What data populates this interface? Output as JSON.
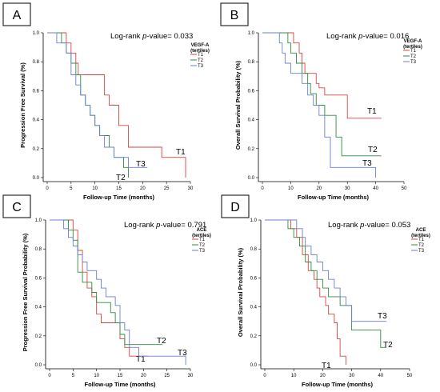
{
  "chart_data": [
    {
      "panel": "A",
      "type": "line",
      "step": true,
      "xlabel": "Follow-up Time (months)",
      "ylabel": "Progression Free Survival (%)",
      "xlim": [
        0,
        30
      ],
      "ylim": [
        0,
        1.0
      ],
      "xticks": [
        "0",
        "5",
        "10",
        "15",
        "20",
        "25",
        "30"
      ],
      "yticks": [
        "0.0",
        "0.2",
        "0.4",
        "0.6",
        "0.8",
        "1.0"
      ],
      "pvalue_prefix": "Log-rank ",
      "pvalue_italic": "p",
      "pvalue_suffix": "-value= 0.033",
      "legend_title": [
        "VEGF-A",
        "(tertiles)"
      ],
      "legend_position": "right",
      "series": [
        {
          "name": "T1",
          "color": "#d9453f",
          "end_label": "T1",
          "x": [
            0,
            2,
            4,
            5,
            6,
            6.5,
            8,
            12,
            13,
            15,
            17,
            21,
            24,
            28,
            29
          ],
          "y": [
            1.0,
            1.0,
            0.93,
            0.86,
            0.79,
            0.71,
            0.71,
            0.57,
            0.5,
            0.36,
            0.21,
            0.21,
            0.14,
            0.14,
            0.0
          ]
        },
        {
          "name": "T2",
          "color": "#2e8b3e",
          "end_label": "T2",
          "x": [
            0,
            3,
            4,
            5,
            6,
            7,
            8,
            9,
            10,
            11,
            12,
            13,
            14,
            15,
            16,
            17
          ],
          "y": [
            1.0,
            0.93,
            0.86,
            0.79,
            0.71,
            0.57,
            0.5,
            0.43,
            0.36,
            0.29,
            0.29,
            0.21,
            0.14,
            0.14,
            0.07,
            0.0
          ]
        },
        {
          "name": "T3",
          "color": "#6a7fd0",
          "end_label": "T3",
          "x": [
            0,
            2,
            4,
            5,
            6,
            7,
            8,
            9,
            10,
            11,
            12,
            13,
            14,
            15,
            17,
            19,
            21
          ],
          "y": [
            1.0,
            0.93,
            0.86,
            0.71,
            0.64,
            0.57,
            0.5,
            0.43,
            0.36,
            0.29,
            0.21,
            0.21,
            0.14,
            0.14,
            0.07,
            0.07,
            0.07
          ]
        }
      ]
    },
    {
      "panel": "B",
      "type": "line",
      "step": true,
      "xlabel": "Follow-up Time (months)",
      "ylabel": "Overall Survival Probability (%)",
      "xlim": [
        0,
        50
      ],
      "ylim": [
        0,
        1.0
      ],
      "xticks": [
        "0",
        "10",
        "20",
        "30",
        "40",
        "50"
      ],
      "yticks": [
        "0.0",
        "0.2",
        "0.4",
        "0.6",
        "0.8",
        "1.0"
      ],
      "pvalue_prefix": "Log-rank ",
      "pvalue_italic": "p",
      "pvalue_suffix": "-value= 0.016",
      "legend_title": [
        "VEGF-A",
        "(tertiles)"
      ],
      "legend_position": "right",
      "series": [
        {
          "name": "T1",
          "color": "#d9453f",
          "end_label": "T1",
          "x": [
            0,
            10,
            11,
            13,
            14,
            15,
            17,
            19,
            20,
            22,
            24,
            29,
            30,
            42
          ],
          "y": [
            1.0,
            1.0,
            0.93,
            0.86,
            0.79,
            0.72,
            0.72,
            0.65,
            0.62,
            0.57,
            0.57,
            0.57,
            0.41,
            0.41
          ]
        },
        {
          "name": "T2",
          "color": "#2e8b3e",
          "end_label": "T2",
          "x": [
            0,
            9,
            10,
            12,
            14,
            16,
            17,
            19,
            22,
            24,
            26,
            28,
            30,
            42
          ],
          "y": [
            1.0,
            0.93,
            0.86,
            0.79,
            0.72,
            0.65,
            0.58,
            0.5,
            0.43,
            0.43,
            0.28,
            0.15,
            0.15,
            0.15
          ]
        },
        {
          "name": "T3",
          "color": "#6a7fd0",
          "end_label": "T3",
          "x": [
            0,
            6,
            7,
            8,
            10,
            12,
            14,
            16,
            18,
            20,
            22,
            24,
            26,
            30,
            39,
            40
          ],
          "y": [
            1.0,
            0.93,
            0.86,
            0.79,
            0.72,
            0.72,
            0.65,
            0.57,
            0.5,
            0.43,
            0.28,
            0.07,
            0.07,
            0.07,
            0.07,
            0.0
          ]
        }
      ]
    },
    {
      "panel": "C",
      "type": "line",
      "step": true,
      "xlabel": "Follow-up Time (months)",
      "ylabel": "Progression Free Survival Probability (%)",
      "xlim": [
        0,
        30
      ],
      "ylim": [
        0,
        1.0
      ],
      "xticks": [
        "0",
        "5",
        "10",
        "15",
        "20",
        "25",
        "30"
      ],
      "yticks": [
        "0.0",
        "0.2",
        "0.4",
        "0.6",
        "0.8",
        "1.0"
      ],
      "pvalue_prefix": "Log-rank ",
      "pvalue_italic": "p",
      "pvalue_suffix": "-value= 0.791",
      "legend_title": [
        "ACE",
        "(tertiles)"
      ],
      "legend_position": "right",
      "series": [
        {
          "name": "T1",
          "color": "#d9453f",
          "end_label": "T1",
          "x": [
            0,
            3,
            5,
            6,
            7,
            8,
            9,
            10,
            11,
            12,
            15,
            16,
            17,
            19,
            21
          ],
          "y": [
            1.0,
            1.0,
            0.93,
            0.79,
            0.64,
            0.53,
            0.47,
            0.35,
            0.29,
            0.29,
            0.18,
            0.12,
            0.06,
            0.06,
            0.06
          ]
        },
        {
          "name": "T2",
          "color": "#2e8b3e",
          "end_label": "T2",
          "x": [
            0,
            4,
            5,
            6,
            7,
            9,
            10,
            11,
            13,
            14,
            15,
            16,
            17,
            21,
            24
          ],
          "y": [
            1.0,
            0.93,
            0.86,
            0.64,
            0.57,
            0.5,
            0.43,
            0.43,
            0.36,
            0.29,
            0.21,
            0.14,
            0.14,
            0.14,
            0.14
          ]
        },
        {
          "name": "T3",
          "color": "#6a7fd0",
          "end_label": "T3",
          "x": [
            0,
            3,
            4,
            5,
            6,
            7,
            8,
            10,
            11,
            12,
            14,
            15,
            16,
            17,
            19,
            28,
            29
          ],
          "y": [
            1.0,
            0.94,
            0.88,
            0.82,
            0.76,
            0.71,
            0.65,
            0.59,
            0.53,
            0.47,
            0.41,
            0.29,
            0.24,
            0.12,
            0.06,
            0.06,
            0.0
          ]
        }
      ]
    },
    {
      "panel": "D",
      "type": "line",
      "step": true,
      "xlabel": "Follow-up Time (months)",
      "ylabel": "Overall Survival Probability (%)",
      "xlim": [
        0,
        50
      ],
      "ylim": [
        0,
        1.0
      ],
      "xticks": [
        "0",
        "10",
        "20",
        "30",
        "40",
        "50"
      ],
      "yticks": [
        "0.0",
        "0.2",
        "0.4",
        "0.6",
        "0.8",
        "1.0"
      ],
      "pvalue_prefix": "Log-rank ",
      "pvalue_italic": "p",
      "pvalue_suffix": "-value= 0.053",
      "legend_title": [
        "ACE",
        "(tertiles)"
      ],
      "legend_position": "right",
      "series": [
        {
          "name": "T1",
          "color": "#d9453f",
          "end_label": "T1",
          "x": [
            0,
            9,
            11,
            13,
            15,
            17,
            18,
            19,
            21,
            22,
            24,
            25,
            26,
            27,
            28
          ],
          "y": [
            1.0,
            0.94,
            0.88,
            0.76,
            0.65,
            0.59,
            0.53,
            0.47,
            0.41,
            0.35,
            0.29,
            0.18,
            0.06,
            0.06,
            0.0
          ]
        },
        {
          "name": "T2",
          "color": "#2e8b3e",
          "end_label": "T2",
          "x": [
            0,
            8,
            10,
            12,
            14,
            16,
            18,
            20,
            22,
            26,
            30,
            38,
            40,
            42
          ],
          "y": [
            1.0,
            0.94,
            0.88,
            0.82,
            0.71,
            0.65,
            0.59,
            0.53,
            0.47,
            0.41,
            0.24,
            0.24,
            0.12,
            0.12
          ]
        },
        {
          "name": "T3",
          "color": "#6a7fd0",
          "end_label": "T3",
          "x": [
            0,
            10,
            11,
            13,
            14,
            16,
            18,
            20,
            22,
            24,
            26,
            28,
            30,
            42
          ],
          "y": [
            1.0,
            1.0,
            0.94,
            0.88,
            0.82,
            0.76,
            0.71,
            0.65,
            0.59,
            0.53,
            0.47,
            0.41,
            0.3,
            0.3
          ]
        }
      ]
    }
  ]
}
